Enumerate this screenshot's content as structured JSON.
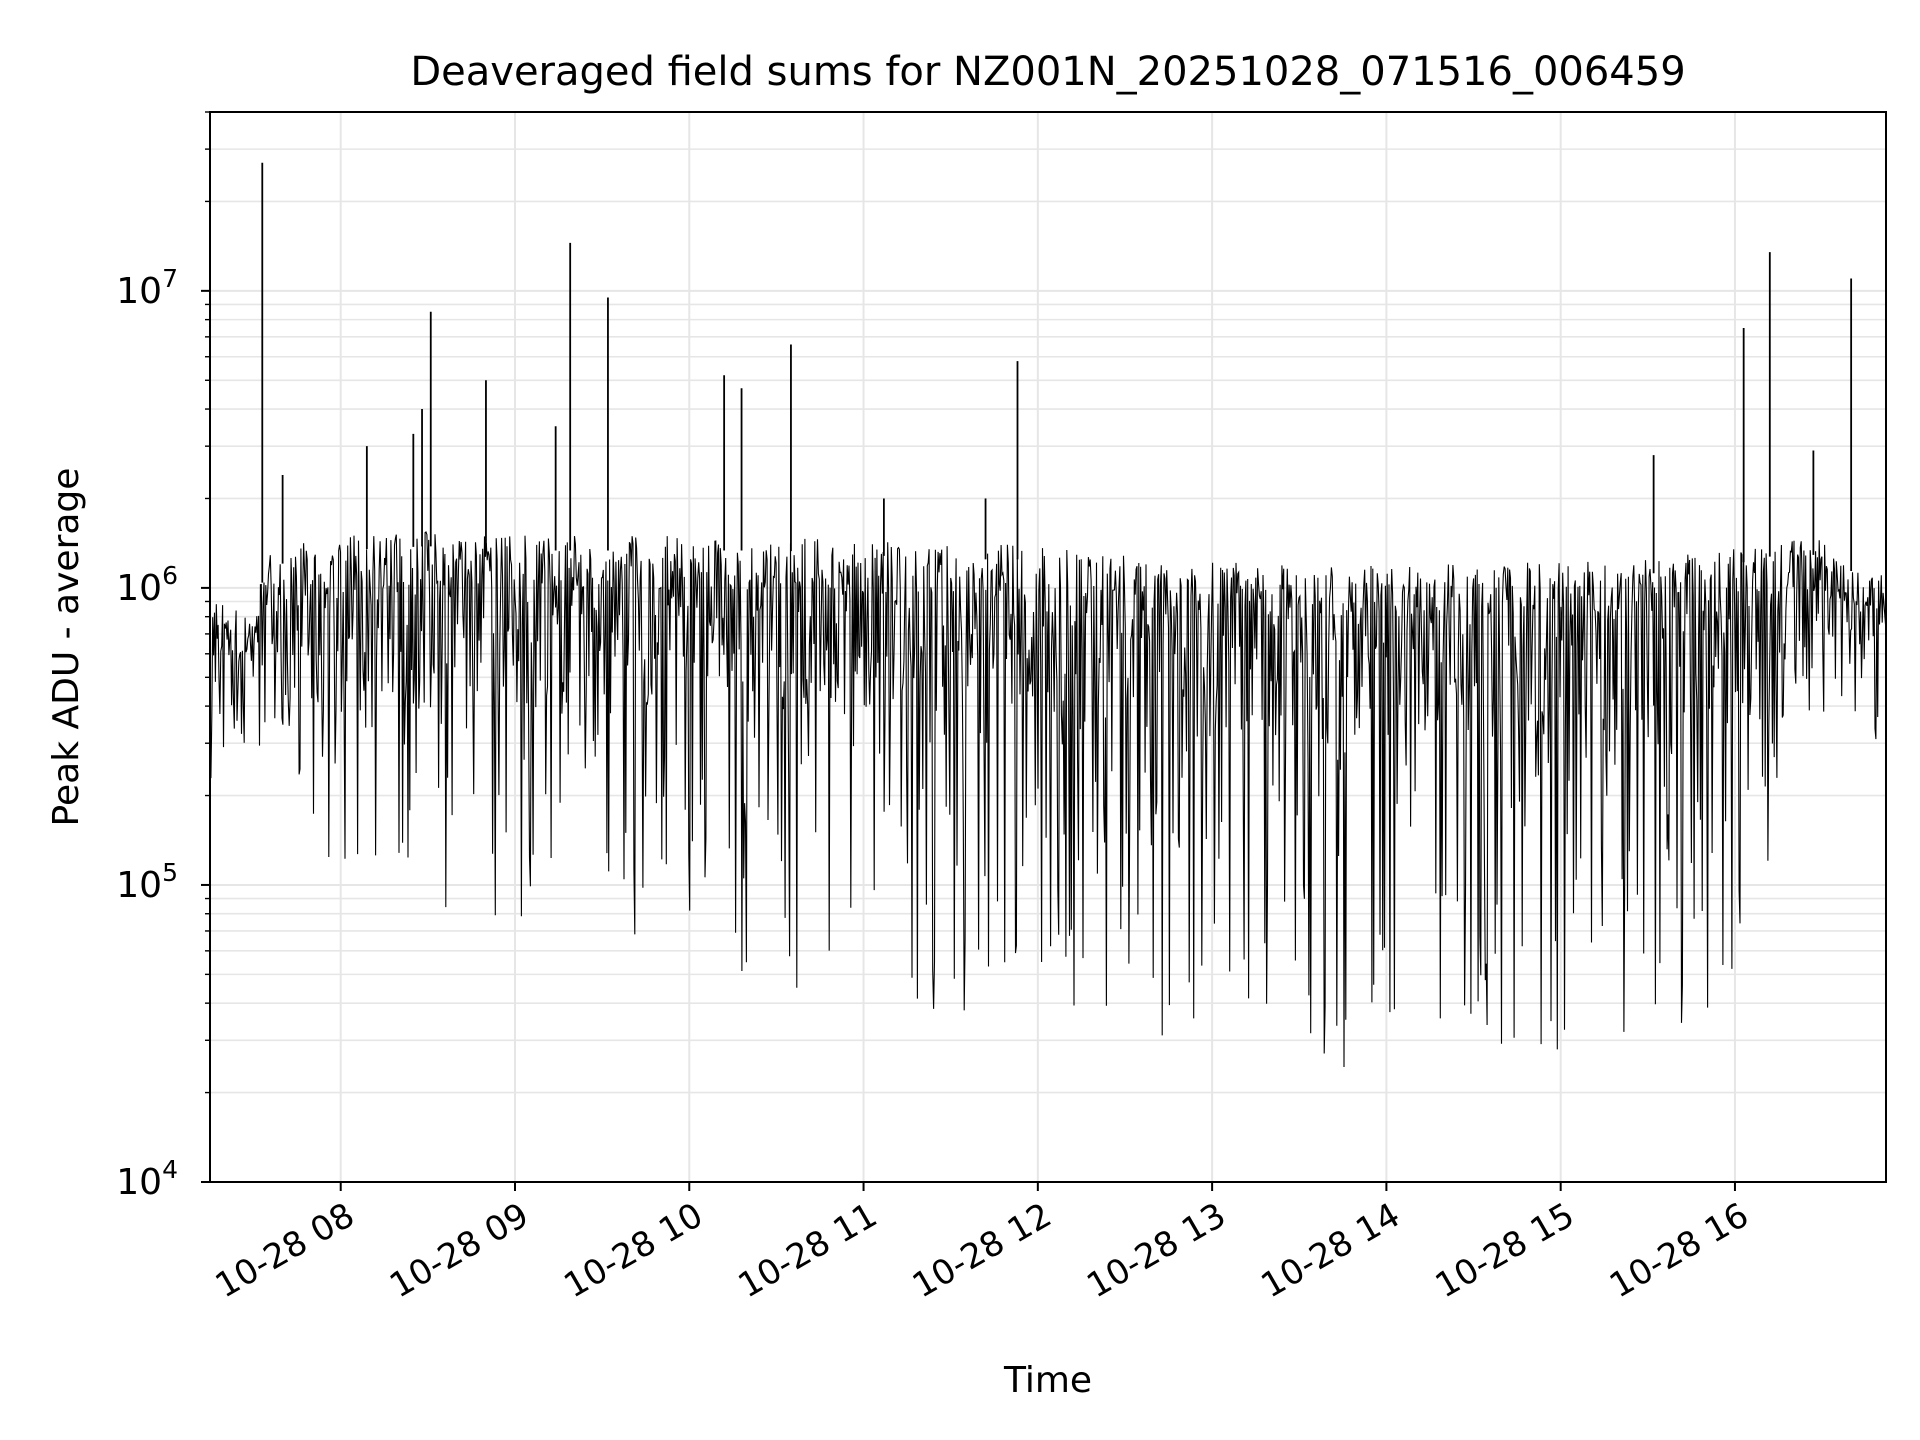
{
  "chart_data": {
    "type": "line",
    "title": "Deaveraged field sums for NZ001N_20251028_071516_006459",
    "xlabel": "Time",
    "ylabel": "Peak ADU - average",
    "y_scale": "log",
    "ylim": [
      10000,
      40000000
    ],
    "xlim": [
      "2025-10-28 07:15",
      "2025-10-28 16:52"
    ],
    "grid": true,
    "legend": "none",
    "line_color": "#000000",
    "grid_color": "#e6e6e6",
    "x_ticks": [
      {
        "time": "2025-10-28 08:00",
        "label": "10-28 08"
      },
      {
        "time": "2025-10-28 09:00",
        "label": "10-28 09"
      },
      {
        "time": "2025-10-28 10:00",
        "label": "10-28 10"
      },
      {
        "time": "2025-10-28 11:00",
        "label": "10-28 11"
      },
      {
        "time": "2025-10-28 12:00",
        "label": "10-28 12"
      },
      {
        "time": "2025-10-28 13:00",
        "label": "10-28 13"
      },
      {
        "time": "2025-10-28 14:00",
        "label": "10-28 14"
      },
      {
        "time": "2025-10-28 15:00",
        "label": "10-28 15"
      },
      {
        "time": "2025-10-28 16:00",
        "label": "10-28 16"
      }
    ],
    "y_ticks": [
      {
        "value": 10000,
        "base": "10",
        "exp": "4"
      },
      {
        "value": 100000,
        "base": "10",
        "exp": "5"
      },
      {
        "value": 1000000,
        "base": "10",
        "exp": "6"
      },
      {
        "value": 10000000,
        "base": "10",
        "exp": "7"
      }
    ],
    "envelope": [
      {
        "time": "2025-10-28 07:15",
        "high": 900000,
        "low": 450000
      },
      {
        "time": "2025-10-28 07:30",
        "high": 850000,
        "low": 600000
      },
      {
        "time": "2025-10-28 07:34",
        "high": 1300000,
        "low": 700000
      },
      {
        "time": "2025-10-28 07:45",
        "high": 1400000,
        "low": 200000
      },
      {
        "time": "2025-10-28 08:00",
        "high": 1500000,
        "low": 100000
      },
      {
        "time": "2025-10-28 08:30",
        "high": 1550000,
        "low": 80000
      },
      {
        "time": "2025-10-28 09:00",
        "high": 1500000,
        "low": 70000
      },
      {
        "time": "2025-10-28 09:30",
        "high": 1500000,
        "low": 70000
      },
      {
        "time": "2025-10-28 10:00",
        "high": 1500000,
        "low": 60000
      },
      {
        "time": "2025-10-28 10:30",
        "high": 1500000,
        "low": 45000
      },
      {
        "time": "2025-10-28 11:00",
        "high": 1450000,
        "low": 40000
      },
      {
        "time": "2025-10-28 11:30",
        "high": 1400000,
        "low": 35000
      },
      {
        "time": "2025-10-28 12:00",
        "high": 1400000,
        "low": 40000
      },
      {
        "time": "2025-10-28 12:30",
        "high": 1300000,
        "low": 30000
      },
      {
        "time": "2025-10-28 13:00",
        "high": 1250000,
        "low": 26000
      },
      {
        "time": "2025-10-28 13:30",
        "high": 1200000,
        "low": 25000
      },
      {
        "time": "2025-10-28 14:00",
        "high": 1200000,
        "low": 23000
      },
      {
        "time": "2025-10-28 14:30",
        "high": 1200000,
        "low": 25000
      },
      {
        "time": "2025-10-28 15:00",
        "high": 1250000,
        "low": 28000
      },
      {
        "time": "2025-10-28 15:30",
        "high": 1250000,
        "low": 30000
      },
      {
        "time": "2025-10-28 16:00",
        "high": 1350000,
        "low": 40000
      },
      {
        "time": "2025-10-28 16:15",
        "high": 1450000,
        "low": 120000
      },
      {
        "time": "2025-10-28 16:30",
        "high": 1450000,
        "low": 600000
      },
      {
        "time": "2025-10-28 16:52",
        "high": 1100000,
        "low": 700000
      }
    ],
    "spikes": [
      {
        "time": "2025-10-28 07:33",
        "value": 27000000
      },
      {
        "time": "2025-10-28 07:40",
        "value": 2400000
      },
      {
        "time": "2025-10-28 08:09",
        "value": 3000000
      },
      {
        "time": "2025-10-28 08:25",
        "value": 3300000
      },
      {
        "time": "2025-10-28 08:28",
        "value": 4000000
      },
      {
        "time": "2025-10-28 08:31",
        "value": 8500000
      },
      {
        "time": "2025-10-28 08:50",
        "value": 5000000
      },
      {
        "time": "2025-10-28 09:14",
        "value": 3500000
      },
      {
        "time": "2025-10-28 09:19",
        "value": 14500000
      },
      {
        "time": "2025-10-28 09:32",
        "value": 9500000
      },
      {
        "time": "2025-10-28 10:12",
        "value": 5200000
      },
      {
        "time": "2025-10-28 10:18",
        "value": 4700000
      },
      {
        "time": "2025-10-28 10:35",
        "value": 6600000
      },
      {
        "time": "2025-10-28 11:07",
        "value": 2000000
      },
      {
        "time": "2025-10-28 11:42",
        "value": 2000000
      },
      {
        "time": "2025-10-28 11:53",
        "value": 5800000
      },
      {
        "time": "2025-10-28 15:32",
        "value": 2800000
      },
      {
        "time": "2025-10-28 16:03",
        "value": 7500000
      },
      {
        "time": "2025-10-28 16:12",
        "value": 13500000
      },
      {
        "time": "2025-10-28 16:27",
        "value": 2900000
      },
      {
        "time": "2025-10-28 16:40",
        "value": 11000000
      }
    ]
  }
}
